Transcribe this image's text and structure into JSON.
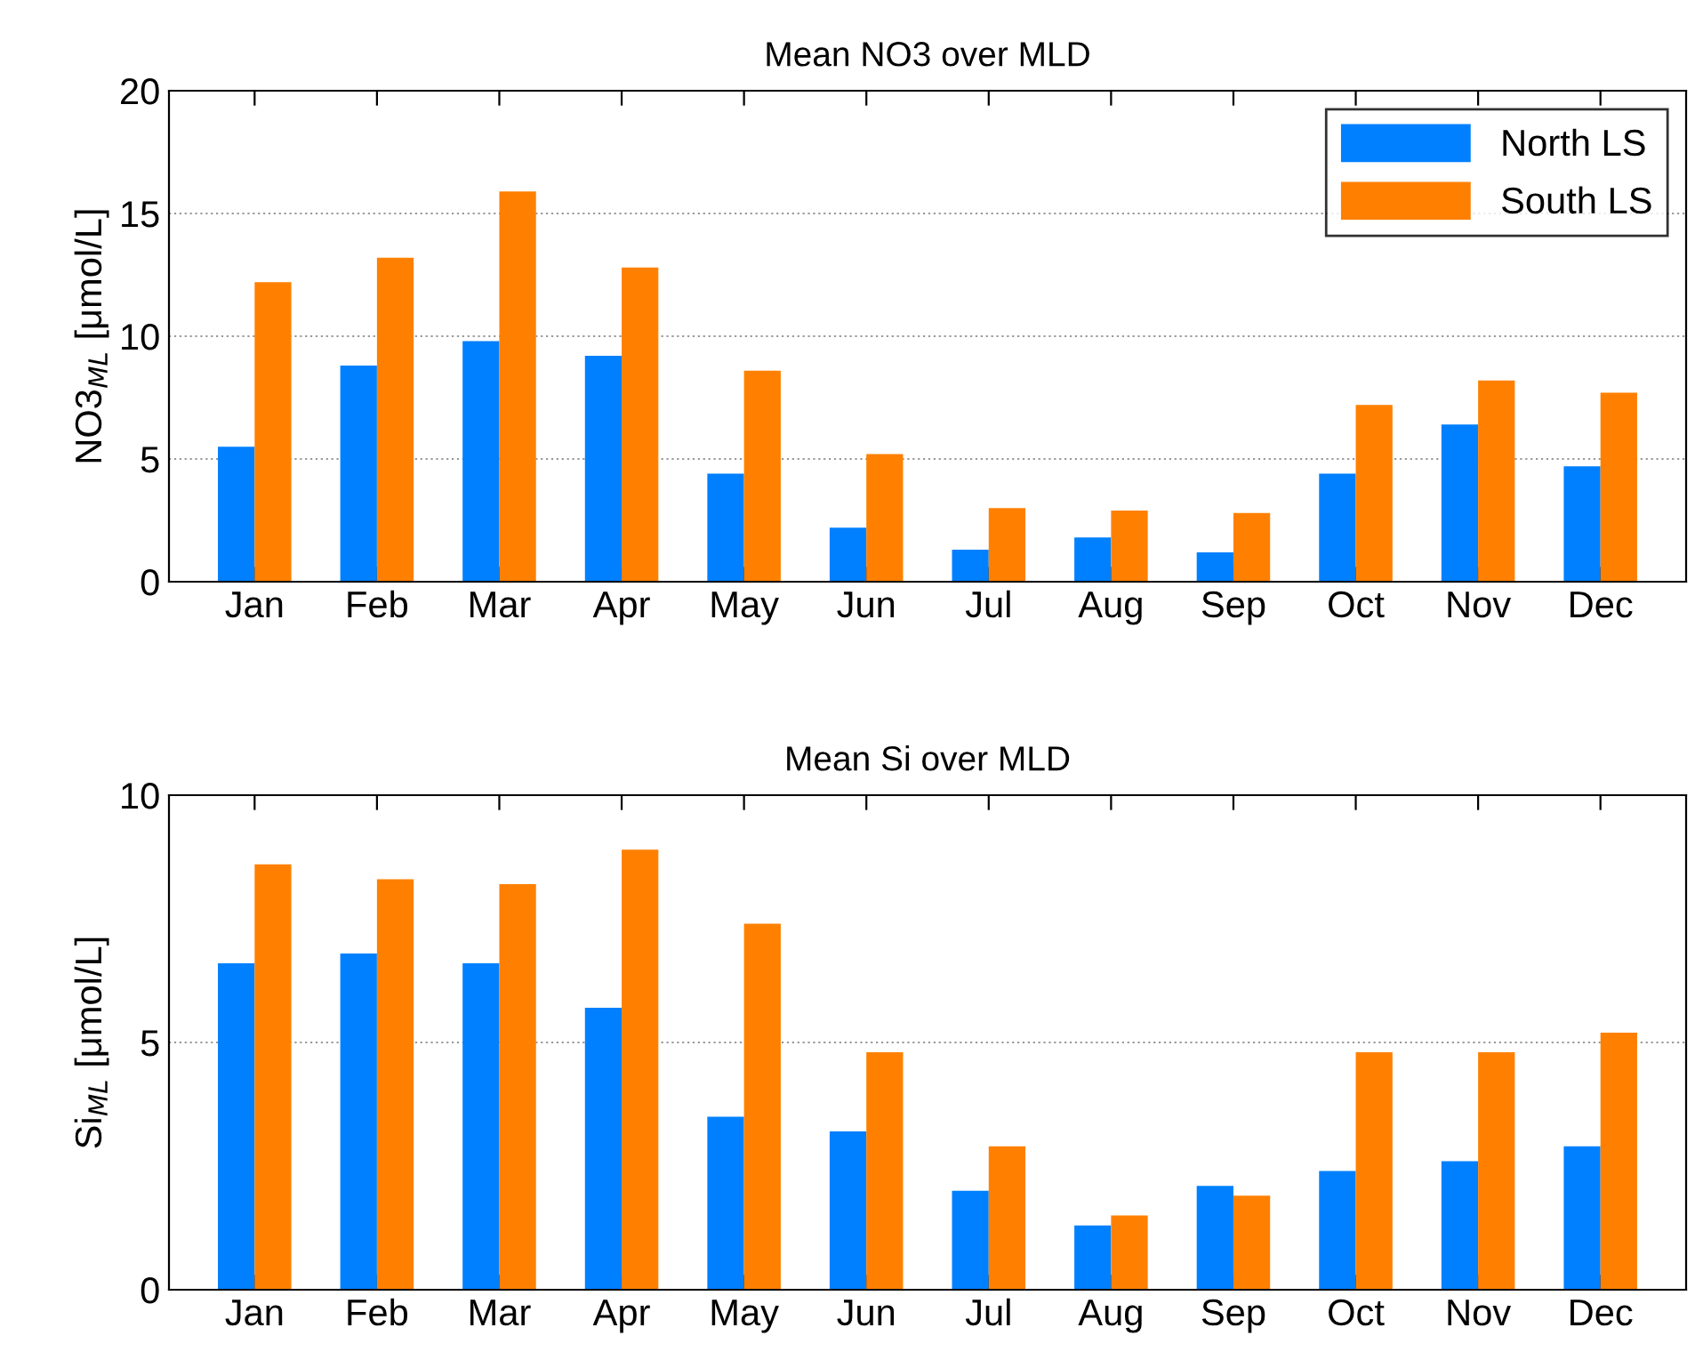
{
  "chart_data": [
    {
      "type": "bar",
      "title": "Mean NO3 over MLD",
      "ylabel": "NO3$_{ML}$ [μmol/L]",
      "categories": [
        "Jan",
        "Feb",
        "Mar",
        "Apr",
        "May",
        "Jun",
        "Jul",
        "Aug",
        "Sep",
        "Oct",
        "Nov",
        "Dec"
      ],
      "series": [
        {
          "name": "North LS",
          "color": "#0080ff",
          "values": [
            5.5,
            8.8,
            9.8,
            9.2,
            4.4,
            2.2,
            1.3,
            1.8,
            1.2,
            4.4,
            6.4,
            4.7
          ]
        },
        {
          "name": "South LS",
          "color": "#ff8000",
          "values": [
            12.2,
            13.2,
            15.9,
            12.8,
            8.6,
            5.2,
            3.0,
            2.9,
            2.8,
            7.2,
            8.2,
            7.7
          ]
        }
      ],
      "ylim": [
        0,
        20
      ],
      "yticks": [
        0,
        5,
        10,
        15,
        20
      ],
      "grid": "y",
      "legend": "top right"
    },
    {
      "type": "bar",
      "title": "Mean Si over MLD",
      "ylabel": "Si$_{ML}$ [μmol/L]",
      "categories": [
        "Jan",
        "Feb",
        "Mar",
        "Apr",
        "May",
        "Jun",
        "Jul",
        "Aug",
        "Sep",
        "Oct",
        "Nov",
        "Dec"
      ],
      "series": [
        {
          "color": "#0080ff",
          "values": [
            6.6,
            6.8,
            6.6,
            5.7,
            3.5,
            3.2,
            2.0,
            1.3,
            2.1,
            2.4,
            2.6,
            2.9
          ]
        },
        {
          "color": "#ff8000",
          "values": [
            8.6,
            8.3,
            8.2,
            8.9,
            7.4,
            4.8,
            2.9,
            1.5,
            1.9,
            4.8,
            4.8,
            5.2
          ]
        }
      ],
      "ylim": [
        0,
        10
      ],
      "yticks": [
        0,
        5,
        10
      ],
      "grid": "y"
    }
  ]
}
